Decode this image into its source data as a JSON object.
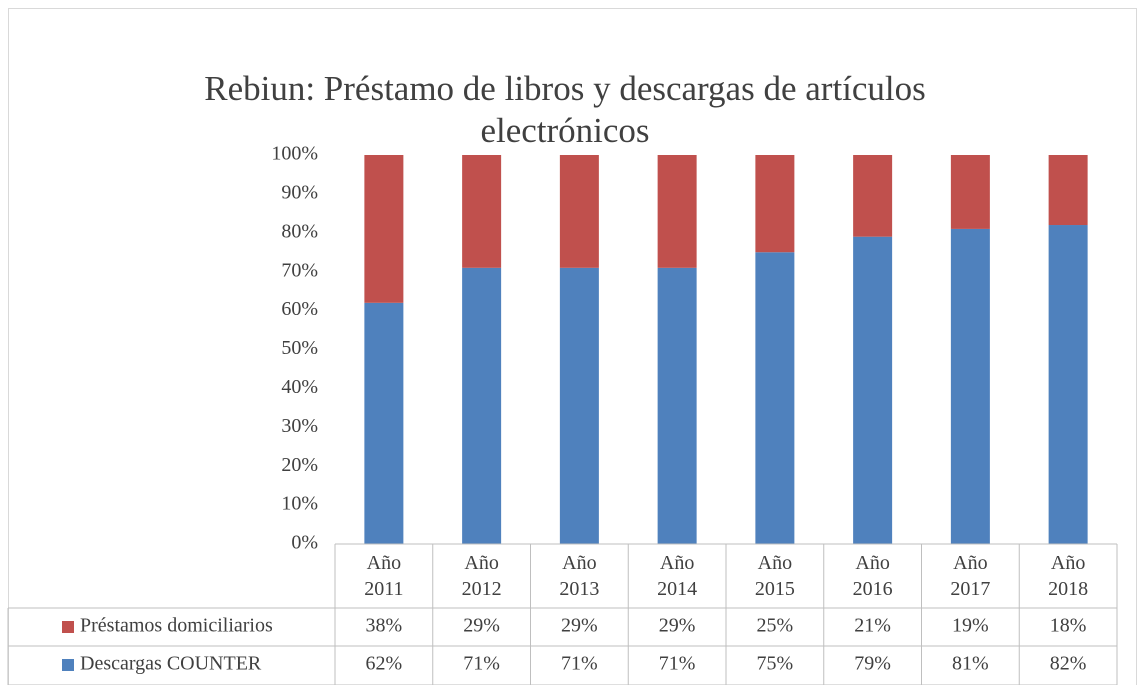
{
  "chart_data": {
    "type": "stacked_bar",
    "title": "Rebiun: Préstamo de libros y descargas de artículos electrónicos",
    "categories": [
      "Año 2011",
      "Año 2012",
      "Año 2013",
      "Año 2014",
      "Año 2015",
      "Año 2016",
      "Año 2017",
      "Año 2018"
    ],
    "series": [
      {
        "name": "Préstamos domiciliarios",
        "color": "#c0504d",
        "values": [
          38,
          29,
          29,
          29,
          25,
          21,
          19,
          18
        ],
        "value_labels": [
          "38%",
          "29%",
          "29%",
          "29%",
          "25%",
          "21%",
          "19%",
          "18%"
        ]
      },
      {
        "name": "Descargas COUNTER",
        "color": "#4f81bd",
        "values": [
          62,
          71,
          71,
          71,
          75,
          79,
          81,
          82
        ],
        "value_labels": [
          "62%",
          "71%",
          "71%",
          "71%",
          "75%",
          "79%",
          "81%",
          "82%"
        ]
      }
    ],
    "ylim": [
      0,
      100
    ],
    "yticks": [
      {
        "value": 0,
        "label": "0%"
      },
      {
        "value": 10,
        "label": "10%"
      },
      {
        "value": 20,
        "label": "20%"
      },
      {
        "value": 30,
        "label": "30%"
      },
      {
        "value": 40,
        "label": "40%"
      },
      {
        "value": 50,
        "label": "50%"
      },
      {
        "value": 60,
        "label": "60%"
      },
      {
        "value": 70,
        "label": "70%"
      },
      {
        "value": 80,
        "label": "80%"
      },
      {
        "value": 90,
        "label": "90%"
      },
      {
        "value": 100,
        "label": "100%"
      }
    ],
    "grid": false
  }
}
